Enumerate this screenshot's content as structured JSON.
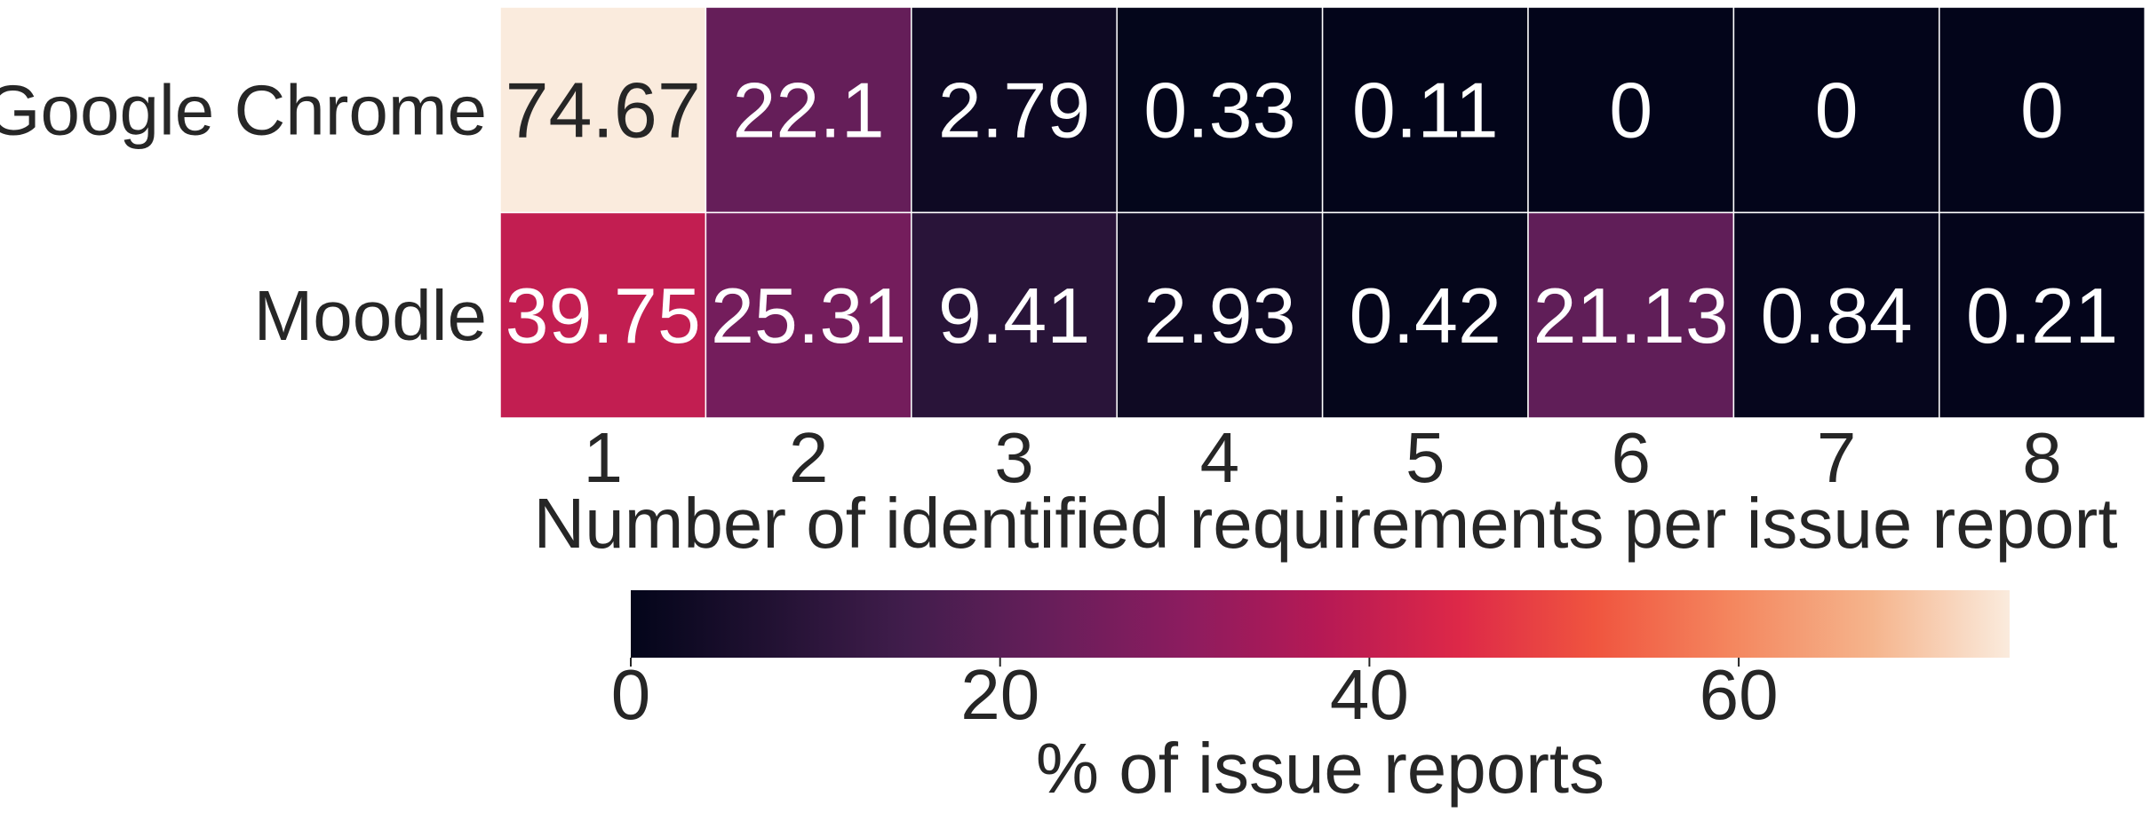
{
  "chart_data": {
    "type": "heatmap",
    "rows": [
      "Google Chrome",
      "Moodle"
    ],
    "columns": [
      "1",
      "2",
      "3",
      "4",
      "5",
      "6",
      "7",
      "8"
    ],
    "values": [
      [
        74.67,
        22.1,
        2.79,
        0.33,
        0.11,
        0,
        0,
        0
      ],
      [
        39.75,
        25.31,
        9.41,
        2.93,
        0.42,
        21.13,
        0.84,
        0.21
      ]
    ],
    "value_labels": [
      [
        "74.67",
        "22.1",
        "2.79",
        "0.33",
        "0.11",
        "0",
        "0",
        "0"
      ],
      [
        "39.75",
        "25.31",
        "9.41",
        "2.93",
        "0.42",
        "21.13",
        "0.84",
        "0.21"
      ]
    ],
    "xlabel": "Number of identified requirements per issue report",
    "ylabel": "",
    "colorbar": {
      "label": "% of issue reports",
      "range": [
        0,
        74.67
      ],
      "ticks": [
        0,
        20,
        40,
        60
      ],
      "tick_labels": [
        "0",
        "20",
        "40",
        "60"
      ],
      "orientation": "horizontal",
      "placement": "bottom",
      "colormap": "rocket"
    },
    "grid": false
  }
}
